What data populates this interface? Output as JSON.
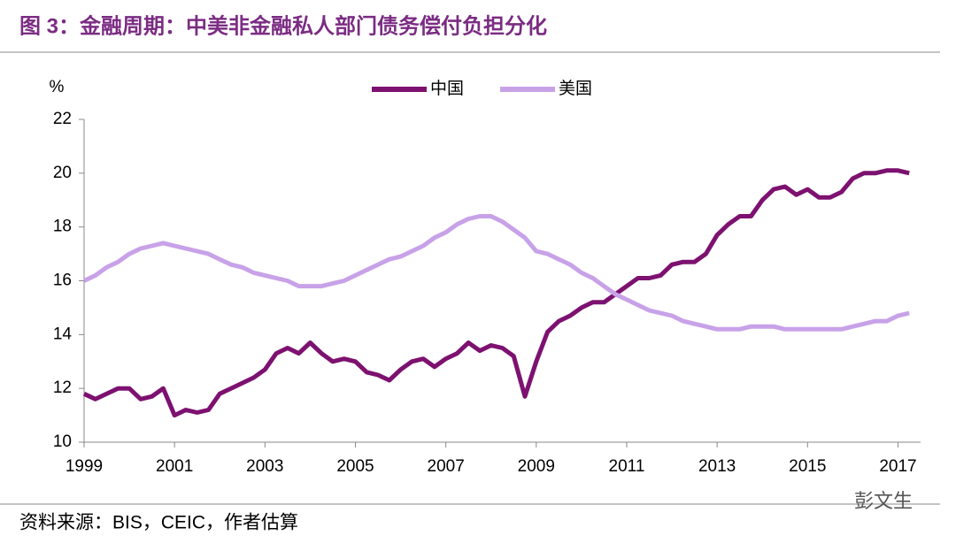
{
  "chart_data": {
    "type": "line",
    "title": "图 3：金融周期：中美非金融私人部门债务偿付负担分化",
    "y_label": "%",
    "source": "资料来源：BIS，CEIC，作者估算",
    "watermark": "彭文生",
    "x": [
      1999,
      1999.25,
      1999.5,
      1999.75,
      2000,
      2000.25,
      2000.5,
      2000.75,
      2001,
      2001.25,
      2001.5,
      2001.75,
      2002,
      2002.25,
      2002.5,
      2002.75,
      2003,
      2003.25,
      2003.5,
      2003.75,
      2004,
      2004.25,
      2004.5,
      2004.75,
      2005,
      2005.25,
      2005.5,
      2005.75,
      2006,
      2006.25,
      2006.5,
      2006.75,
      2007,
      2007.25,
      2007.5,
      2007.75,
      2008,
      2008.25,
      2008.5,
      2008.75,
      2009,
      2009.25,
      2009.5,
      2009.75,
      2010,
      2010.25,
      2010.5,
      2010.75,
      2011,
      2011.25,
      2011.5,
      2011.75,
      2012,
      2012.25,
      2012.5,
      2012.75,
      2013,
      2013.25,
      2013.5,
      2013.75,
      2014,
      2014.25,
      2014.5,
      2014.75,
      2015,
      2015.25,
      2015.5,
      2015.75,
      2016,
      2016.25,
      2016.5,
      2016.75,
      2017,
      2017.25
    ],
    "series": [
      {
        "name": "中国",
        "color": "#7d1170",
        "values": [
          11.8,
          11.6,
          11.8,
          12.0,
          12.0,
          11.6,
          11.7,
          12.0,
          11.0,
          11.2,
          11.1,
          11.2,
          11.8,
          12.0,
          12.2,
          12.4,
          12.7,
          13.3,
          13.5,
          13.3,
          13.7,
          13.3,
          13.0,
          13.1,
          13.0,
          12.6,
          12.5,
          12.3,
          12.7,
          13.0,
          13.1,
          12.8,
          13.1,
          13.3,
          13.7,
          13.4,
          13.6,
          13.5,
          13.2,
          11.7,
          13.0,
          14.1,
          14.5,
          14.7,
          15.0,
          15.2,
          15.2,
          15.5,
          15.8,
          16.1,
          16.1,
          16.2,
          16.6,
          16.7,
          16.7,
          17.0,
          17.7,
          18.1,
          18.4,
          18.4,
          19.0,
          19.4,
          19.5,
          19.2,
          19.4,
          19.1,
          19.1,
          19.3,
          19.8,
          20.0,
          20.0,
          20.1,
          20.1,
          20.0
        ]
      },
      {
        "name": "美国",
        "color": "#c8a2e8",
        "values": [
          16.0,
          16.2,
          16.5,
          16.7,
          17.0,
          17.2,
          17.3,
          17.4,
          17.3,
          17.2,
          17.1,
          17.0,
          16.8,
          16.6,
          16.5,
          16.3,
          16.2,
          16.1,
          16.0,
          15.8,
          15.8,
          15.8,
          15.9,
          16.0,
          16.2,
          16.4,
          16.6,
          16.8,
          16.9,
          17.1,
          17.3,
          17.6,
          17.8,
          18.1,
          18.3,
          18.4,
          18.4,
          18.2,
          17.9,
          17.6,
          17.1,
          17.0,
          16.8,
          16.6,
          16.3,
          16.1,
          15.8,
          15.5,
          15.3,
          15.1,
          14.9,
          14.8,
          14.7,
          14.5,
          14.4,
          14.3,
          14.2,
          14.2,
          14.2,
          14.3,
          14.3,
          14.3,
          14.2,
          14.2,
          14.2,
          14.2,
          14.2,
          14.2,
          14.3,
          14.4,
          14.5,
          14.5,
          14.7,
          14.8
        ]
      }
    ],
    "xlim": [
      1999,
      2017.5
    ],
    "xticks": [
      1999,
      2001,
      2003,
      2005,
      2007,
      2009,
      2011,
      2013,
      2015,
      2017
    ],
    "ylim": [
      10,
      22
    ],
    "yticks": [
      10,
      12,
      14,
      16,
      18,
      20,
      22
    ],
    "grid": false,
    "legend": "top"
  }
}
